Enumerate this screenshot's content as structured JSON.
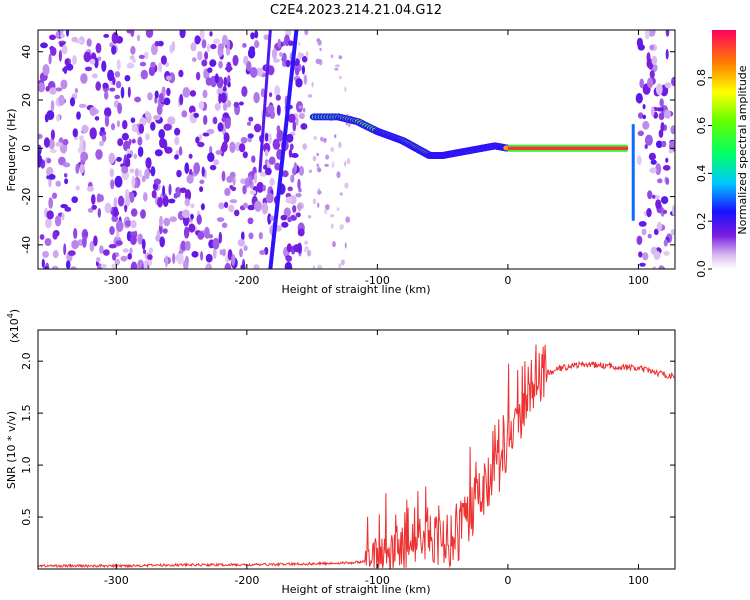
{
  "title": "C2E4.2023.214.21.04.G12",
  "chart_data": [
    {
      "type": "heatmap",
      "xlabel": "Height of straight line (km)",
      "ylabel": "Frequency (Hz)",
      "xlim": [
        -360,
        128
      ],
      "ylim": [
        -50,
        49
      ],
      "x_ticks": [
        -300,
        -200,
        -100,
        0,
        100
      ],
      "y_ticks": [
        -40,
        -20,
        0,
        20,
        40
      ],
      "colorbar": {
        "label": "Normalized spectral amplitude",
        "range": [
          0.0,
          1.0
        ],
        "ticks": [
          0.0,
          0.2,
          0.4,
          0.6,
          0.8
        ]
      },
      "features": {
        "noise_regions_km": [
          [
            -360,
            -155
          ],
          [
            100,
            128
          ]
        ],
        "clear_region_km": [
          -150,
          100
        ],
        "diagonal_streak": {
          "x": [
            -182,
            -162
          ],
          "y": [
            -50,
            49
          ],
          "amplitude": 0.15
        },
        "signal_track": {
          "x": [
            -148,
            -130,
            -115,
            -100,
            -90,
            -80,
            -70,
            -60,
            -50,
            -40,
            -30,
            -20,
            -10,
            0,
            20,
            40,
            60,
            80,
            92
          ],
          "y": [
            13,
            13,
            11,
            7,
            5,
            3,
            0,
            -3,
            -3,
            -2,
            -1,
            0,
            1,
            0,
            0,
            0,
            0,
            0,
            0
          ],
          "amplitude": [
            0.5,
            0.55,
            0.6,
            0.55,
            0.55,
            0.6,
            0.6,
            0.55,
            0.6,
            0.65,
            0.7,
            0.7,
            0.7,
            0.85,
            0.95,
            0.95,
            0.95,
            0.95,
            0.95
          ]
        }
      }
    },
    {
      "type": "line",
      "xlabel": "Height of straight line (km)",
      "ylabel": "SNR (10 * v/v)",
      "multiplier_label": "(x10",
      "multiplier_exp": "4",
      "multiplier_close": ")",
      "xlim": [
        -360,
        128
      ],
      "ylim": [
        0,
        2.3
      ],
      "x_ticks": [
        -300,
        -200,
        -100,
        0,
        100
      ],
      "y_ticks": [
        0.5,
        1.0,
        1.5,
        2.0
      ],
      "y_tick_labels": [
        "0.5",
        "1.0",
        "1.5",
        "2.0"
      ],
      "series": [
        {
          "color": "#ee3030",
          "x": [
            -360,
            -300,
            -250,
            -200,
            -150,
            -120,
            -100,
            -90,
            -80,
            -70,
            -60,
            -50,
            -40,
            -30,
            -20,
            -10,
            0,
            10,
            20,
            30,
            40,
            50,
            60,
            70,
            80,
            90,
            100,
            110,
            120,
            128
          ],
          "y": [
            0.03,
            0.03,
            0.04,
            0.04,
            0.05,
            0.06,
            0.08,
            0.12,
            0.2,
            0.3,
            0.3,
            0.25,
            0.3,
            0.55,
            0.75,
            0.95,
            1.2,
            1.55,
            1.75,
            1.88,
            1.93,
            1.96,
            1.97,
            1.96,
            1.95,
            1.94,
            1.93,
            1.9,
            1.87,
            1.85
          ]
        }
      ]
    }
  ]
}
